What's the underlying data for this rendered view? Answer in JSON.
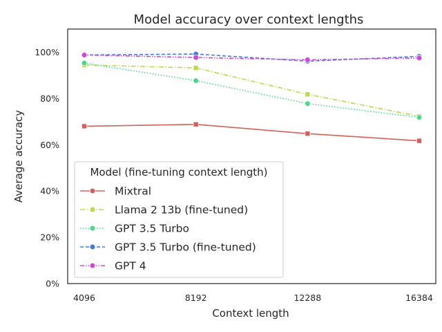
{
  "chart_data": {
    "type": "line",
    "title": "Model accuracy over context lengths",
    "xlabel": "Context length",
    "ylabel": "Average accuracy",
    "x": [
      4096,
      8192,
      12288,
      16384
    ],
    "x_tick_labels": [
      "4096",
      "8192",
      "12288",
      "16384"
    ],
    "ylim": [
      0,
      1.1
    ],
    "y_ticks": [
      0,
      0.2,
      0.4,
      0.6,
      0.8,
      1.0
    ],
    "y_tick_labels": [
      "0%",
      "20%",
      "40%",
      "60%",
      "80%",
      "100%"
    ],
    "grid": false,
    "legend": {
      "title": "Model (fine-tuning context length)",
      "placement": "lower-left"
    },
    "series": [
      {
        "name": "Mixtral",
        "color": "#d1615d",
        "linestyle": "solid",
        "marker": "square",
        "values": [
          0.68,
          0.688,
          0.648,
          0.617
        ]
      },
      {
        "name": "Llama 2 13b (fine-tuned)",
        "color": "#bcd94f",
        "linestyle": "dashdot",
        "marker": "square",
        "values": [
          0.945,
          0.932,
          0.818,
          0.723
        ]
      },
      {
        "name": "GPT 3.5 Turbo",
        "color": "#4fd48a",
        "linestyle": "dotted",
        "marker": "circle",
        "values": [
          0.953,
          0.877,
          0.778,
          0.718
        ]
      },
      {
        "name": "GPT 3.5 Turbo (fine-tuned)",
        "color": "#4a78d4",
        "linestyle": "dashed",
        "marker": "circle",
        "values": [
          0.988,
          0.992,
          0.961,
          0.982
        ]
      },
      {
        "name": "GPT 4",
        "color": "#c94ad6",
        "linestyle": "dashdotdot",
        "marker": "circle",
        "values": [
          0.988,
          0.977,
          0.967,
          0.975
        ]
      }
    ]
  }
}
